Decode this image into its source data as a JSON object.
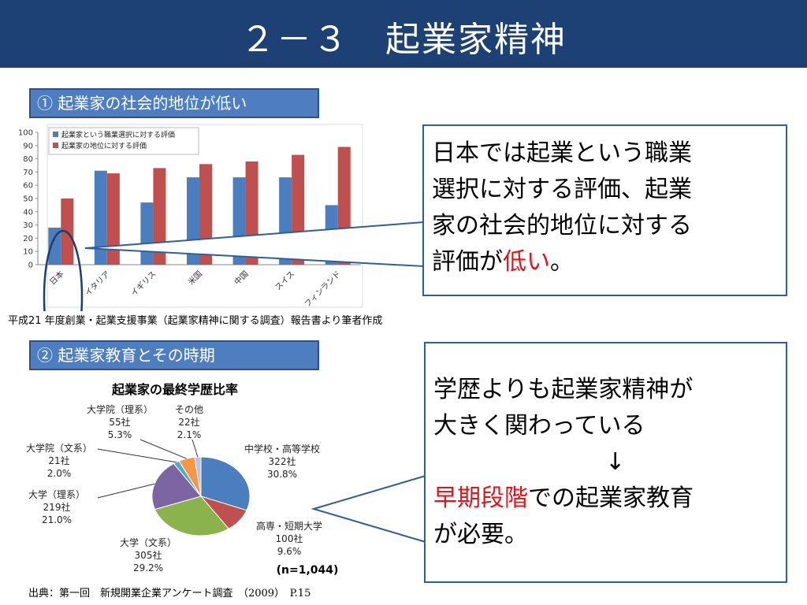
{
  "header": {
    "title": "２－３　起業家精神"
  },
  "section1": {
    "label": "① 起業家の社会的地位が低い"
  },
  "section2": {
    "label": "② 起業家教育とその時期"
  },
  "callout1": {
    "line1": "日本では起業という職業",
    "line2": "選択に対する評価、起業",
    "line3": "家の社会的地位に対する",
    "line4_pre": "評価が",
    "line4_red": "低い",
    "line4_post": "。"
  },
  "callout2": {
    "line1": "学歴よりも起業家精神が",
    "line2": "大きく関わっている",
    "arrow": "↓",
    "line4_red": "早期段階",
    "line4_post": "での起業家教育",
    "line5": "が必要。"
  },
  "source1": "平成21 年度創業・起業支援事業（起業家精神に関する調査）報告書より筆者作成",
  "source2": "出典：第一回　新規開業企業アンケート調査　（2009）　P.15",
  "colors": {
    "header": "#1d4175",
    "bar_blue": "#4a7ebf",
    "bar_red": "#c0504d",
    "highlight": "#e0141a"
  },
  "chart_data": [
    {
      "type": "bar",
      "categories": [
        "日本",
        "イタリア",
        "イギリス",
        "米国",
        "中国",
        "スイス",
        "フィンランド"
      ],
      "series": [
        {
          "name": "起業家という職業選択に対する評価",
          "values": [
            28,
            71,
            47,
            66,
            66,
            66,
            45
          ],
          "color": "#4a7ebf"
        },
        {
          "name": "起業家の地位に対する評価",
          "values": [
            50,
            69,
            73,
            76,
            78,
            83,
            89
          ],
          "color": "#c0504d"
        }
      ],
      "yticks": [
        "0",
        "10",
        "20",
        "30",
        "40",
        "50",
        "60",
        "70",
        "80",
        "90",
        "100"
      ],
      "ylim": [
        0,
        100
      ],
      "legend": "top-left",
      "grid": false
    },
    {
      "type": "pie",
      "title": "起業家の最終学歴比率",
      "note": "(n=1,044)",
      "slices": [
        {
          "label": "中学校・高等学校",
          "count": "322社",
          "pct": "30.8%",
          "value": 30.8,
          "color": "#4a7ebf"
        },
        {
          "label": "高専・短期大学",
          "count": "100社",
          "pct": "9.6%",
          "value": 9.6,
          "color": "#c0504d"
        },
        {
          "label": "大学（文系）",
          "count": "305社",
          "pct": "29.2%",
          "value": 29.2,
          "color": "#8ab34d"
        },
        {
          "label": "大学（理系）",
          "count": "219社",
          "pct": "21.0%",
          "value": 21.0,
          "color": "#7d64a3"
        },
        {
          "label": "大学院（文系）",
          "count": "21社",
          "pct": "2.0%",
          "value": 2.0,
          "color": "#4bacc6"
        },
        {
          "label": "大学院（理系）",
          "count": "55社",
          "pct": "5.3%",
          "value": 5.3,
          "color": "#f79646"
        },
        {
          "label": "その他",
          "count": "22社",
          "pct": "2.1%",
          "value": 2.1,
          "color": "#b9c6de"
        }
      ]
    }
  ]
}
